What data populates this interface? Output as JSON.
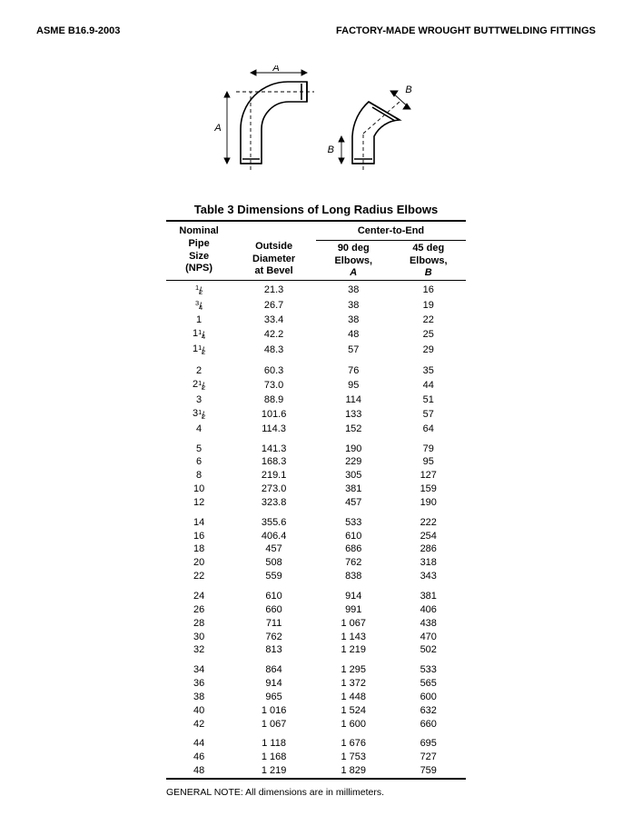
{
  "header": {
    "left": "ASME B16.9-2003",
    "right": "FACTORY-MADE WROUGHT BUTTWELDING FITTINGS"
  },
  "table_title": "Table 3   Dimensions of Long Radius Elbows",
  "columns": {
    "group_left_l1": "Nominal",
    "group_left_l2": "Pipe",
    "group_left_l3": "Size",
    "group_left_l4": "(NPS)",
    "col2_l1": "Outside",
    "col2_l2": "Diameter",
    "col2_l3": "at Bevel",
    "group_right": "Center-to-End",
    "col3_l1": "90 deg",
    "col3_l2": "Elbows,",
    "col3_l3": "A",
    "col4_l1": "45 deg",
    "col4_l2": "Elbows,",
    "col4_l3": "B"
  },
  "diagram": {
    "labelA": "A",
    "labelB": "B",
    "stroke": "#000000",
    "dash": "4 3"
  },
  "rows": [
    {
      "nps_whole": "",
      "nps_frac": "1/2",
      "od": "21.3",
      "a": "38",
      "b": "16",
      "gap": false
    },
    {
      "nps_whole": "",
      "nps_frac": "3/4",
      "od": "26.7",
      "a": "38",
      "b": "19",
      "gap": false
    },
    {
      "nps_whole": "1",
      "nps_frac": "",
      "od": "33.4",
      "a": "38",
      "b": "22",
      "gap": false
    },
    {
      "nps_whole": "1",
      "nps_frac": "1/4",
      "od": "42.2",
      "a": "48",
      "b": "25",
      "gap": false
    },
    {
      "nps_whole": "1",
      "nps_frac": "1/2",
      "od": "48.3",
      "a": "57",
      "b": "29",
      "gap": false
    },
    {
      "nps_whole": "2",
      "nps_frac": "",
      "od": "60.3",
      "a": "76",
      "b": "35",
      "gap": true
    },
    {
      "nps_whole": "2",
      "nps_frac": "1/2",
      "od": "73.0",
      "a": "95",
      "b": "44",
      "gap": false
    },
    {
      "nps_whole": "3",
      "nps_frac": "",
      "od": "88.9",
      "a": "114",
      "b": "51",
      "gap": false
    },
    {
      "nps_whole": "3",
      "nps_frac": "1/2",
      "od": "101.6",
      "a": "133",
      "b": "57",
      "gap": false
    },
    {
      "nps_whole": "4",
      "nps_frac": "",
      "od": "114.3",
      "a": "152",
      "b": "64",
      "gap": false
    },
    {
      "nps_whole": "5",
      "nps_frac": "",
      "od": "141.3",
      "a": "190",
      "b": "79",
      "gap": true
    },
    {
      "nps_whole": "6",
      "nps_frac": "",
      "od": "168.3",
      "a": "229",
      "b": "95",
      "gap": false
    },
    {
      "nps_whole": "8",
      "nps_frac": "",
      "od": "219.1",
      "a": "305",
      "b": "127",
      "gap": false
    },
    {
      "nps_whole": "10",
      "nps_frac": "",
      "od": "273.0",
      "a": "381",
      "b": "159",
      "gap": false
    },
    {
      "nps_whole": "12",
      "nps_frac": "",
      "od": "323.8",
      "a": "457",
      "b": "190",
      "gap": false
    },
    {
      "nps_whole": "14",
      "nps_frac": "",
      "od": "355.6",
      "a": "533",
      "b": "222",
      "gap": true
    },
    {
      "nps_whole": "16",
      "nps_frac": "",
      "od": "406.4",
      "a": "610",
      "b": "254",
      "gap": false
    },
    {
      "nps_whole": "18",
      "nps_frac": "",
      "od": "457",
      "a": "686",
      "b": "286",
      "gap": false
    },
    {
      "nps_whole": "20",
      "nps_frac": "",
      "od": "508",
      "a": "762",
      "b": "318",
      "gap": false
    },
    {
      "nps_whole": "22",
      "nps_frac": "",
      "od": "559",
      "a": "838",
      "b": "343",
      "gap": false
    },
    {
      "nps_whole": "24",
      "nps_frac": "",
      "od": "610",
      "a": "914",
      "b": "381",
      "gap": true
    },
    {
      "nps_whole": "26",
      "nps_frac": "",
      "od": "660",
      "a": "991",
      "b": "406",
      "gap": false
    },
    {
      "nps_whole": "28",
      "nps_frac": "",
      "od": "711",
      "a": "1 067",
      "b": "438",
      "gap": false
    },
    {
      "nps_whole": "30",
      "nps_frac": "",
      "od": "762",
      "a": "1 143",
      "b": "470",
      "gap": false
    },
    {
      "nps_whole": "32",
      "nps_frac": "",
      "od": "813",
      "a": "1 219",
      "b": "502",
      "gap": false
    },
    {
      "nps_whole": "34",
      "nps_frac": "",
      "od": "864",
      "a": "1 295",
      "b": "533",
      "gap": true
    },
    {
      "nps_whole": "36",
      "nps_frac": "",
      "od": "914",
      "a": "1 372",
      "b": "565",
      "gap": false
    },
    {
      "nps_whole": "38",
      "nps_frac": "",
      "od": "965",
      "a": "1 448",
      "b": "600",
      "gap": false
    },
    {
      "nps_whole": "40",
      "nps_frac": "",
      "od": "1 016",
      "a": "1 524",
      "b": "632",
      "gap": false
    },
    {
      "nps_whole": "42",
      "nps_frac": "",
      "od": "1 067",
      "a": "1 600",
      "b": "660",
      "gap": false
    },
    {
      "nps_whole": "44",
      "nps_frac": "",
      "od": "1 118",
      "a": "1 676",
      "b": "695",
      "gap": true
    },
    {
      "nps_whole": "46",
      "nps_frac": "",
      "od": "1 168",
      "a": "1 753",
      "b": "727",
      "gap": false
    },
    {
      "nps_whole": "48",
      "nps_frac": "",
      "od": "1 219",
      "a": "1 829",
      "b": "759",
      "gap": false
    }
  ],
  "note": "GENERAL NOTE:  All dimensions are in millimeters."
}
